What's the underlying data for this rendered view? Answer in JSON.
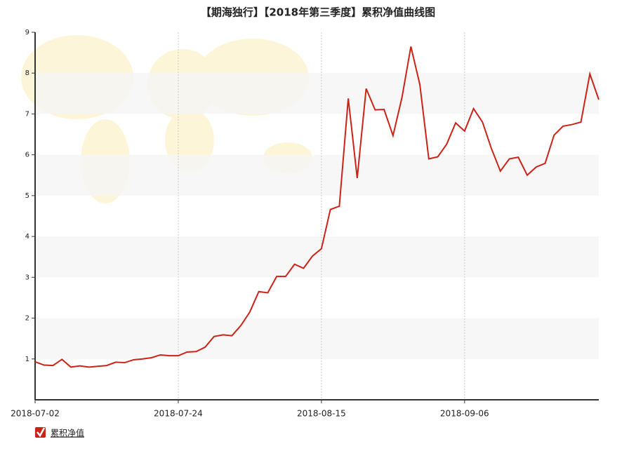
{
  "chart_data": {
    "type": "line",
    "title": "【期海独行】【2018年第三季度】累积净值曲线图",
    "categories": [
      "2018-07-02",
      null,
      null,
      null,
      null,
      null,
      null,
      null,
      null,
      null,
      null,
      null,
      null,
      null,
      null,
      null,
      "2018-07-24",
      null,
      null,
      null,
      null,
      null,
      null,
      null,
      null,
      null,
      null,
      null,
      null,
      null,
      null,
      null,
      "2018-08-15",
      null,
      null,
      null,
      null,
      null,
      null,
      null,
      null,
      null,
      null,
      null,
      null,
      null,
      null,
      null,
      "2018-09-06",
      null,
      null,
      null,
      null,
      null,
      null,
      null,
      null,
      null,
      null,
      null,
      null,
      null,
      null,
      null
    ],
    "series": [
      {
        "name": "累积净值",
        "color": "#cc2218",
        "values": [
          0.93,
          0.85,
          0.84,
          0.99,
          0.8,
          0.83,
          0.8,
          0.82,
          0.84,
          0.92,
          0.91,
          0.98,
          1.0,
          1.03,
          1.1,
          1.08,
          1.08,
          1.17,
          1.18,
          1.29,
          1.55,
          1.59,
          1.57,
          1.82,
          2.15,
          2.65,
          2.62,
          3.02,
          3.02,
          3.32,
          3.22,
          3.52,
          3.7,
          4.66,
          4.74,
          7.38,
          5.43,
          7.62,
          7.1,
          7.11,
          6.47,
          7.4,
          8.65,
          7.72,
          5.9,
          5.95,
          6.26,
          6.78,
          6.58,
          7.13,
          6.8,
          6.15,
          5.6,
          5.9,
          5.94,
          5.5,
          5.7,
          5.79,
          6.48,
          6.7,
          6.74,
          6.8,
          7.98,
          7.35
        ]
      }
    ],
    "ylim": [
      0,
      9
    ],
    "yticks": [
      1,
      2,
      3,
      4,
      5,
      6,
      7,
      8,
      9
    ],
    "grid": true,
    "legend": "bottom-left"
  }
}
